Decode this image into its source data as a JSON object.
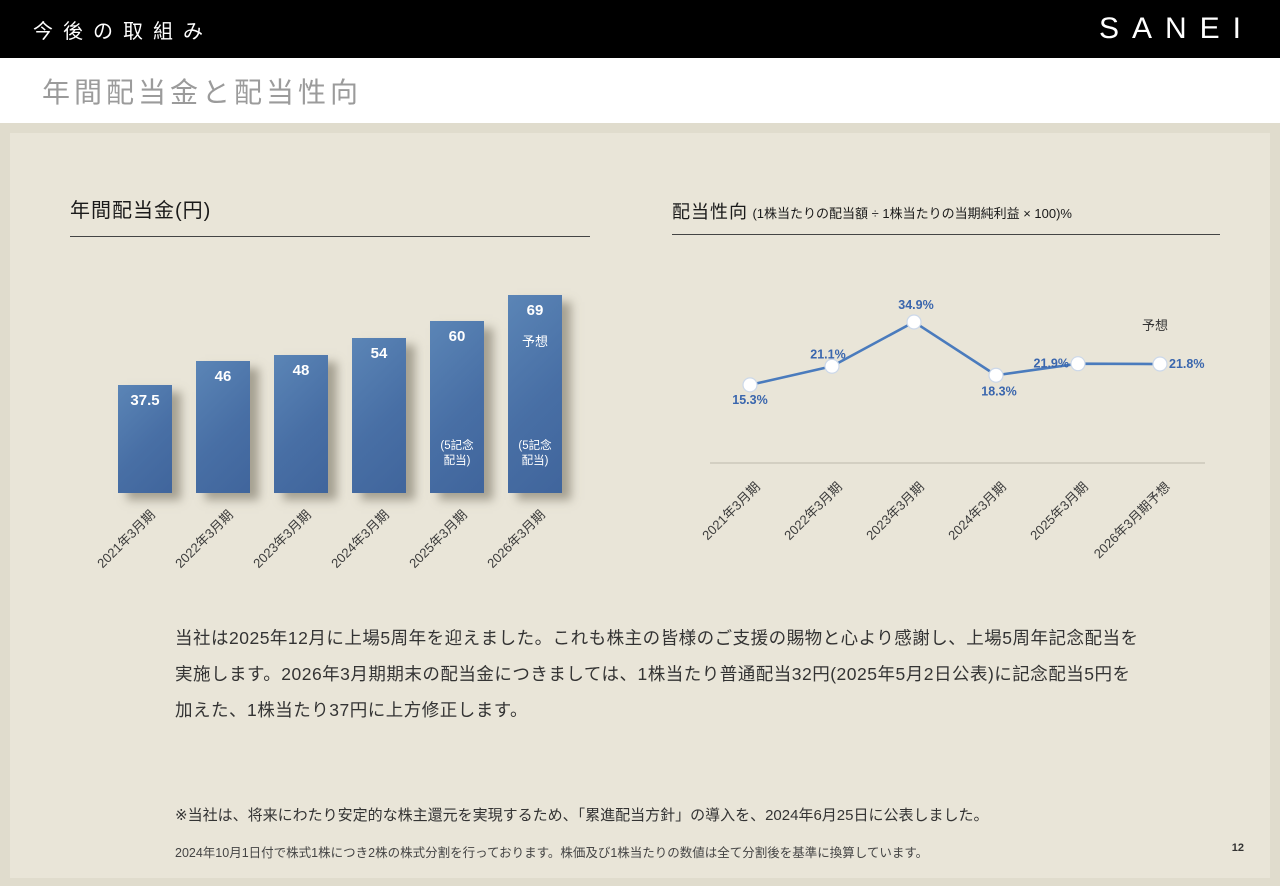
{
  "header": {
    "section_label": "今後の取組み",
    "logo_text": "SANEI"
  },
  "page_title": "年間配当金と配当性向",
  "chart_data": [
    {
      "type": "bar",
      "title": "年間配当金(円)",
      "categories": [
        "2021年3月期",
        "2022年3月期",
        "2023年3月期",
        "2024年3月期",
        "2025年3月期",
        "2026年3月期"
      ],
      "values": [
        37.5,
        46,
        48,
        54,
        60,
        69
      ],
      "value_labels": [
        "37.5",
        "46",
        "48",
        "54",
        "60",
        "69"
      ],
      "annotations": [
        {
          "bar_index": 4,
          "bottom_label": "(5記念\n配当)"
        },
        {
          "bar_index": 5,
          "top_label": "予想",
          "bottom_label": "(5記念\n配当)"
        }
      ],
      "bar_color": "#4a72a8",
      "ylim": [
        0,
        72
      ],
      "x_label_rotation": 45,
      "grid": false
    },
    {
      "type": "line",
      "title": "配当性向",
      "subtitle": "(1株当たりの配当額 ÷ 1株当たりの当期純利益 × 100)%",
      "categories": [
        "2021年3月期",
        "2022年3月期",
        "2023年3月期",
        "2024年3月期",
        "2025年3月期",
        "2026年3月期予想"
      ],
      "values": [
        15.3,
        21.1,
        34.9,
        18.3,
        21.9,
        21.8
      ],
      "point_labels": [
        "15.3%",
        "21.1%",
        "34.9%",
        "18.3%",
        "21.9%",
        "21.8%"
      ],
      "annotation": "予想",
      "line_color": "#4a7bbd",
      "marker": "white-circle",
      "ylim": [
        0,
        40
      ],
      "x_label_rotation": 45,
      "grid": false
    }
  ],
  "body": {
    "paragraph": "当社は2025年12月に上場5周年を迎えました。これも株主の皆様のご支援の賜物と心より感謝し、上場5周年記念配当を実施します。2026年3月期期末の配当金につきましては、1株当たり普通配当32円(2025年5月2日公表)に記念配当5円を加えた、1株当たり37円に上方修正します。",
    "note": "※当社は、将来にわたり安定的な株主還元を実現するため、「累進配当方針」の導入を、2024年6月25日に公表しました。",
    "footnote": "2024年10月1日付で株式1株につき2株の株式分割を行っております。株価及び1株当たりの数値は全て分割後を基準に換算しています。",
    "page_number": "12"
  }
}
